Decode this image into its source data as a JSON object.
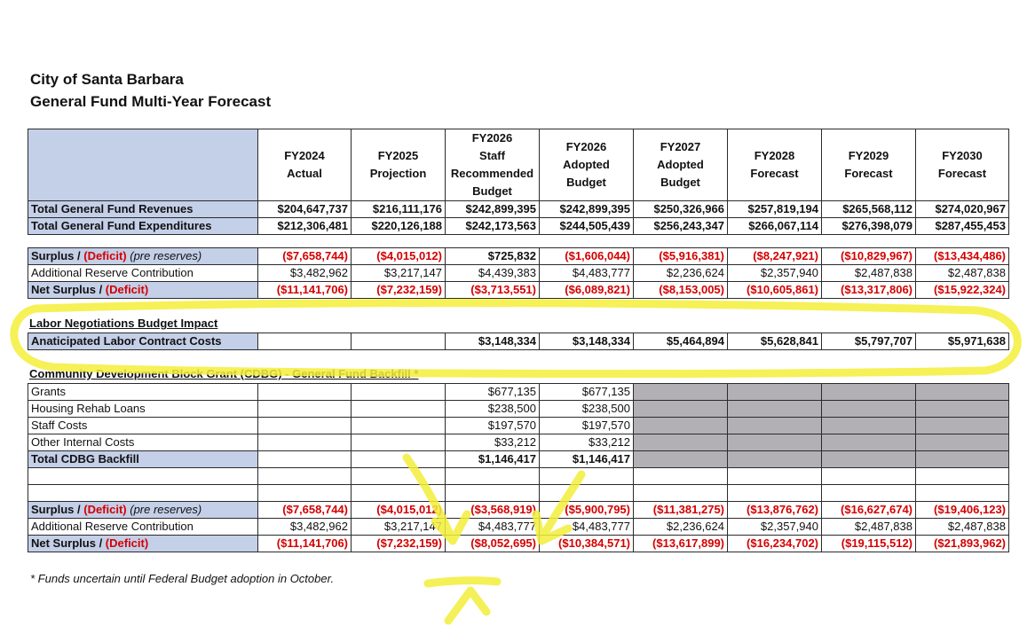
{
  "title": {
    "line1": "City of Santa Barbara",
    "line2": "General Fund Multi-Year Forecast"
  },
  "columns": [
    [
      "FY2024",
      "Actual"
    ],
    [
      "FY2025",
      "Projection"
    ],
    [
      "FY2026",
      "Staff",
      "Recommended",
      "Budget"
    ],
    [
      "FY2026",
      "Adopted Budget"
    ],
    [
      "FY2027",
      "Adopted Budget"
    ],
    [
      "FY2028",
      "Forecast"
    ],
    [
      "FY2029",
      "Forecast"
    ],
    [
      "FY2030",
      "Forecast"
    ]
  ],
  "revenues": {
    "label": "Total General Fund Revenues",
    "values": [
      "$204,647,737",
      "$216,111,176",
      "$242,899,395",
      "$242,899,395",
      "$250,326,966",
      "$257,819,194",
      "$265,568,112",
      "$274,020,967"
    ]
  },
  "expenditures": {
    "label": "Total General Fund Expenditures",
    "values": [
      "$212,306,481",
      "$220,126,188",
      "$242,173,563",
      "$244,505,439",
      "$256,243,347",
      "$266,067,114",
      "$276,398,079",
      "$287,455,453"
    ]
  },
  "surplus1": {
    "label_a": "Surplus / ",
    "label_b": "(Deficit)",
    "label_c": " (pre reserves)",
    "values": [
      "($7,658,744)",
      "($4,015,012)",
      "$725,832",
      "($1,606,044)",
      "($5,916,381)",
      "($8,247,921)",
      "($10,829,967)",
      "($13,434,486)"
    ]
  },
  "reserve1": {
    "label": "Additional Reserve Contribution",
    "values": [
      "$3,482,962",
      "$3,217,147",
      "$4,439,383",
      "$4,483,777",
      "$2,236,624",
      "$2,357,940",
      "$2,487,838",
      "$2,487,838"
    ]
  },
  "net1": {
    "label_a": "Net Surplus / ",
    "label_b": "(Deficit)",
    "values": [
      "($11,141,706)",
      "($7,232,159)",
      "($3,713,551)",
      "($6,089,821)",
      "($8,153,005)",
      "($10,605,861)",
      "($13,317,806)",
      "($15,922,324)"
    ]
  },
  "labor": {
    "section_title": "Labor Negotiations Budget Impact",
    "label": "Anaticipated Labor Contract Costs",
    "values": [
      "",
      "",
      "$3,148,334",
      "$3,148,334",
      "$5,464,894",
      "$5,628,841",
      "$5,797,707",
      "$5,971,638"
    ]
  },
  "cdbg": {
    "section_title": "Community Development Block Grant (CDBG) - General Fund Backfill *",
    "rows": [
      {
        "label": "Grants",
        "values": [
          "$677,135",
          "$677,135"
        ]
      },
      {
        "label": "Housing Rehab Loans",
        "values": [
          "$238,500",
          "$238,500"
        ]
      },
      {
        "label": "Staff Costs",
        "values": [
          "$197,570",
          "$197,570"
        ]
      },
      {
        "label": "Other Internal Costs",
        "values": [
          "$33,212",
          "$33,212"
        ]
      },
      {
        "label": "Total CDBG Backfill",
        "values": [
          "$1,146,417",
          "$1,146,417"
        ]
      }
    ]
  },
  "surplus2": {
    "label_a": "Surplus / ",
    "label_b": "(Deficit)",
    "label_c": " (pre reserves)",
    "values": [
      "($7,658,744)",
      "($4,015,012)",
      "($3,568,919)",
      "($5,900,795)",
      "($11,381,275)",
      "($13,876,762)",
      "($16,627,674)",
      "($19,406,123)"
    ]
  },
  "reserve2": {
    "label": "Additional Reserve Contribution",
    "values": [
      "$3,482,962",
      "$3,217,147",
      "$4,483,777",
      "$4,483,777",
      "$2,236,624",
      "$2,357,940",
      "$2,487,838",
      "$2,487,838"
    ]
  },
  "net2": {
    "label_a": "Net Surplus / ",
    "label_b": "(Deficit)",
    "values": [
      "($11,141,706)",
      "($7,232,159)",
      "($8,052,695)",
      "($10,384,571)",
      "($13,617,899)",
      "($16,234,702)",
      "($19,115,512)",
      "($21,893,962)"
    ]
  },
  "footnote": "* Funds uncertain until Federal Budget adoption in October.",
  "colors": {
    "header_blue": "#c4cfe8",
    "negative_red": "#d40000",
    "shaded_gray": "#b3b0b5",
    "highlighter_yellow": "#f3ee3a"
  }
}
